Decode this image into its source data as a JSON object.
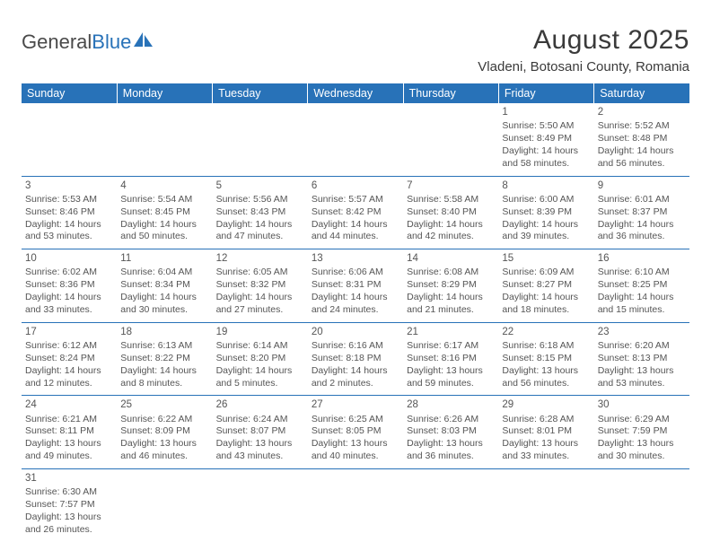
{
  "brand": {
    "part1": "General",
    "part2": "Blue"
  },
  "title": "August 2025",
  "location": "Vladeni, Botosani County, Romania",
  "colors": {
    "accent": "#2872b8",
    "text": "#4a4a4a",
    "bg": "#ffffff"
  },
  "weekdays": [
    "Sunday",
    "Monday",
    "Tuesday",
    "Wednesday",
    "Thursday",
    "Friday",
    "Saturday"
  ],
  "weeks": [
    [
      null,
      null,
      null,
      null,
      null,
      {
        "n": "1",
        "sr": "Sunrise: 5:50 AM",
        "ss": "Sunset: 8:49 PM",
        "d1": "Daylight: 14 hours",
        "d2": "and 58 minutes."
      },
      {
        "n": "2",
        "sr": "Sunrise: 5:52 AM",
        "ss": "Sunset: 8:48 PM",
        "d1": "Daylight: 14 hours",
        "d2": "and 56 minutes."
      }
    ],
    [
      {
        "n": "3",
        "sr": "Sunrise: 5:53 AM",
        "ss": "Sunset: 8:46 PM",
        "d1": "Daylight: 14 hours",
        "d2": "and 53 minutes."
      },
      {
        "n": "4",
        "sr": "Sunrise: 5:54 AM",
        "ss": "Sunset: 8:45 PM",
        "d1": "Daylight: 14 hours",
        "d2": "and 50 minutes."
      },
      {
        "n": "5",
        "sr": "Sunrise: 5:56 AM",
        "ss": "Sunset: 8:43 PM",
        "d1": "Daylight: 14 hours",
        "d2": "and 47 minutes."
      },
      {
        "n": "6",
        "sr": "Sunrise: 5:57 AM",
        "ss": "Sunset: 8:42 PM",
        "d1": "Daylight: 14 hours",
        "d2": "and 44 minutes."
      },
      {
        "n": "7",
        "sr": "Sunrise: 5:58 AM",
        "ss": "Sunset: 8:40 PM",
        "d1": "Daylight: 14 hours",
        "d2": "and 42 minutes."
      },
      {
        "n": "8",
        "sr": "Sunrise: 6:00 AM",
        "ss": "Sunset: 8:39 PM",
        "d1": "Daylight: 14 hours",
        "d2": "and 39 minutes."
      },
      {
        "n": "9",
        "sr": "Sunrise: 6:01 AM",
        "ss": "Sunset: 8:37 PM",
        "d1": "Daylight: 14 hours",
        "d2": "and 36 minutes."
      }
    ],
    [
      {
        "n": "10",
        "sr": "Sunrise: 6:02 AM",
        "ss": "Sunset: 8:36 PM",
        "d1": "Daylight: 14 hours",
        "d2": "and 33 minutes."
      },
      {
        "n": "11",
        "sr": "Sunrise: 6:04 AM",
        "ss": "Sunset: 8:34 PM",
        "d1": "Daylight: 14 hours",
        "d2": "and 30 minutes."
      },
      {
        "n": "12",
        "sr": "Sunrise: 6:05 AM",
        "ss": "Sunset: 8:32 PM",
        "d1": "Daylight: 14 hours",
        "d2": "and 27 minutes."
      },
      {
        "n": "13",
        "sr": "Sunrise: 6:06 AM",
        "ss": "Sunset: 8:31 PM",
        "d1": "Daylight: 14 hours",
        "d2": "and 24 minutes."
      },
      {
        "n": "14",
        "sr": "Sunrise: 6:08 AM",
        "ss": "Sunset: 8:29 PM",
        "d1": "Daylight: 14 hours",
        "d2": "and 21 minutes."
      },
      {
        "n": "15",
        "sr": "Sunrise: 6:09 AM",
        "ss": "Sunset: 8:27 PM",
        "d1": "Daylight: 14 hours",
        "d2": "and 18 minutes."
      },
      {
        "n": "16",
        "sr": "Sunrise: 6:10 AM",
        "ss": "Sunset: 8:25 PM",
        "d1": "Daylight: 14 hours",
        "d2": "and 15 minutes."
      }
    ],
    [
      {
        "n": "17",
        "sr": "Sunrise: 6:12 AM",
        "ss": "Sunset: 8:24 PM",
        "d1": "Daylight: 14 hours",
        "d2": "and 12 minutes."
      },
      {
        "n": "18",
        "sr": "Sunrise: 6:13 AM",
        "ss": "Sunset: 8:22 PM",
        "d1": "Daylight: 14 hours",
        "d2": "and 8 minutes."
      },
      {
        "n": "19",
        "sr": "Sunrise: 6:14 AM",
        "ss": "Sunset: 8:20 PM",
        "d1": "Daylight: 14 hours",
        "d2": "and 5 minutes."
      },
      {
        "n": "20",
        "sr": "Sunrise: 6:16 AM",
        "ss": "Sunset: 8:18 PM",
        "d1": "Daylight: 14 hours",
        "d2": "and 2 minutes."
      },
      {
        "n": "21",
        "sr": "Sunrise: 6:17 AM",
        "ss": "Sunset: 8:16 PM",
        "d1": "Daylight: 13 hours",
        "d2": "and 59 minutes."
      },
      {
        "n": "22",
        "sr": "Sunrise: 6:18 AM",
        "ss": "Sunset: 8:15 PM",
        "d1": "Daylight: 13 hours",
        "d2": "and 56 minutes."
      },
      {
        "n": "23",
        "sr": "Sunrise: 6:20 AM",
        "ss": "Sunset: 8:13 PM",
        "d1": "Daylight: 13 hours",
        "d2": "and 53 minutes."
      }
    ],
    [
      {
        "n": "24",
        "sr": "Sunrise: 6:21 AM",
        "ss": "Sunset: 8:11 PM",
        "d1": "Daylight: 13 hours",
        "d2": "and 49 minutes."
      },
      {
        "n": "25",
        "sr": "Sunrise: 6:22 AM",
        "ss": "Sunset: 8:09 PM",
        "d1": "Daylight: 13 hours",
        "d2": "and 46 minutes."
      },
      {
        "n": "26",
        "sr": "Sunrise: 6:24 AM",
        "ss": "Sunset: 8:07 PM",
        "d1": "Daylight: 13 hours",
        "d2": "and 43 minutes."
      },
      {
        "n": "27",
        "sr": "Sunrise: 6:25 AM",
        "ss": "Sunset: 8:05 PM",
        "d1": "Daylight: 13 hours",
        "d2": "and 40 minutes."
      },
      {
        "n": "28",
        "sr": "Sunrise: 6:26 AM",
        "ss": "Sunset: 8:03 PM",
        "d1": "Daylight: 13 hours",
        "d2": "and 36 minutes."
      },
      {
        "n": "29",
        "sr": "Sunrise: 6:28 AM",
        "ss": "Sunset: 8:01 PM",
        "d1": "Daylight: 13 hours",
        "d2": "and 33 minutes."
      },
      {
        "n": "30",
        "sr": "Sunrise: 6:29 AM",
        "ss": "Sunset: 7:59 PM",
        "d1": "Daylight: 13 hours",
        "d2": "and 30 minutes."
      }
    ],
    [
      {
        "n": "31",
        "sr": "Sunrise: 6:30 AM",
        "ss": "Sunset: 7:57 PM",
        "d1": "Daylight: 13 hours",
        "d2": "and 26 minutes."
      },
      null,
      null,
      null,
      null,
      null,
      null
    ]
  ]
}
